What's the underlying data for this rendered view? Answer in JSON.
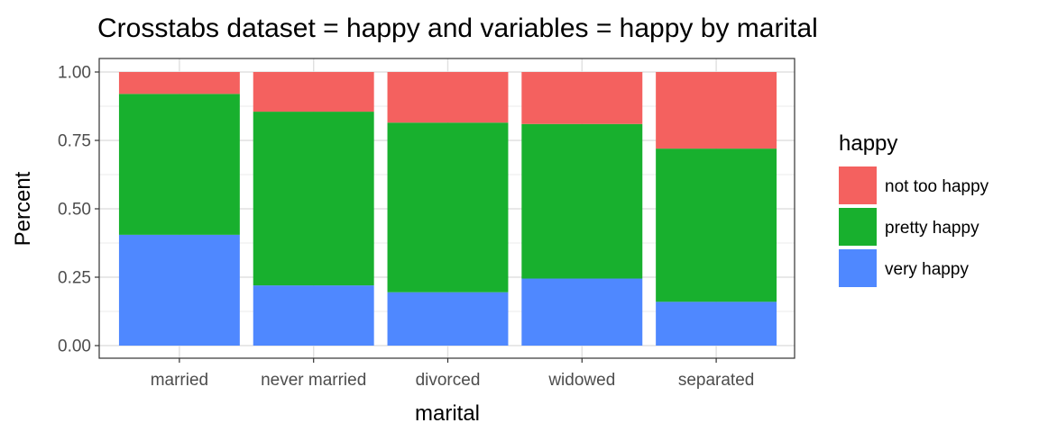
{
  "chart_data": {
    "type": "bar",
    "stacked": true,
    "title": "Crosstabs dataset = happy and variables = happy by marital",
    "xlabel": "marital",
    "ylabel": "Percent",
    "ylim": [
      0,
      1
    ],
    "yticks": [
      "0.00",
      "0.25",
      "0.50",
      "0.75",
      "1.00"
    ],
    "categories": [
      "married",
      "never married",
      "divorced",
      "widowed",
      "separated"
    ],
    "grid": true,
    "legend": {
      "title": "happy",
      "position": "right",
      "entries": [
        "not too happy",
        "pretty happy",
        "very happy"
      ]
    },
    "series": [
      {
        "name": "very happy",
        "color": "#4f88ff",
        "values": [
          0.405,
          0.22,
          0.195,
          0.245,
          0.16
        ]
      },
      {
        "name": "pretty happy",
        "color": "#18b02e",
        "values": [
          0.515,
          0.635,
          0.62,
          0.565,
          0.56
        ]
      },
      {
        "name": "not too happy",
        "color": "#f4615f",
        "values": [
          0.08,
          0.145,
          0.185,
          0.19,
          0.28
        ]
      }
    ]
  }
}
